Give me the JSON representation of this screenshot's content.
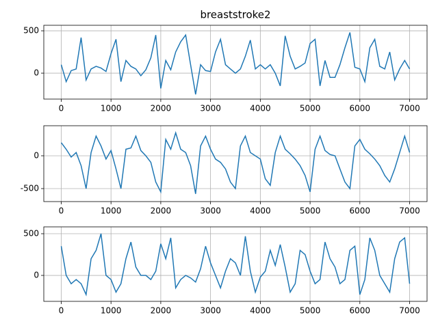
{
  "chart_data": [
    {
      "type": "line",
      "title": "breaststroke2",
      "x": [
        0,
        100,
        200,
        300,
        400,
        500,
        600,
        700,
        800,
        900,
        1000,
        1100,
        1200,
        1300,
        1400,
        1500,
        1600,
        1700,
        1800,
        1900,
        2000,
        2100,
        2200,
        2300,
        2400,
        2500,
        2600,
        2700,
        2800,
        2900,
        3000,
        3100,
        3200,
        3300,
        3400,
        3500,
        3600,
        3700,
        3800,
        3900,
        4000,
        4100,
        4200,
        4300,
        4400,
        4500,
        4600,
        4700,
        4800,
        4900,
        5000,
        5100,
        5200,
        5300,
        5400,
        5500,
        5600,
        5700,
        5800,
        5900,
        6000,
        6100,
        6200,
        6300,
        6400,
        6500,
        6600,
        6700,
        6800,
        6900,
        7000
      ],
      "series": [
        {
          "color": "#1f77b4",
          "values": [
            100,
            -100,
            30,
            50,
            420,
            -80,
            50,
            80,
            60,
            20,
            230,
            400,
            -100,
            150,
            80,
            50,
            -30,
            40,
            180,
            450,
            -180,
            150,
            40,
            250,
            370,
            450,
            100,
            -250,
            100,
            30,
            20,
            250,
            400,
            100,
            50,
            0,
            50,
            200,
            390,
            50,
            100,
            50,
            100,
            0,
            -150,
            440,
            200,
            50,
            80,
            120,
            350,
            400,
            -150,
            150,
            -50,
            -50,
            100,
            300,
            480,
            70,
            50,
            -100,
            300,
            400,
            80,
            50,
            250,
            -80,
            50,
            150,
            50
          ]
        }
      ],
      "xlim": [
        -350,
        7350
      ],
      "ylim": [
        -306,
        565
      ],
      "xticks": [
        0,
        1000,
        2000,
        3000,
        4000,
        5000,
        6000,
        7000
      ],
      "yticks": [
        0,
        500
      ],
      "grid": true
    },
    {
      "type": "line",
      "x": [
        0,
        100,
        200,
        300,
        400,
        500,
        600,
        700,
        800,
        900,
        1000,
        1100,
        1200,
        1300,
        1400,
        1500,
        1600,
        1700,
        1800,
        1900,
        2000,
        2100,
        2200,
        2300,
        2400,
        2500,
        2600,
        2700,
        2800,
        2900,
        3000,
        3100,
        3200,
        3300,
        3400,
        3500,
        3600,
        3700,
        3800,
        3900,
        4000,
        4100,
        4200,
        4300,
        4400,
        4500,
        4600,
        4700,
        4800,
        4900,
        5000,
        5100,
        5200,
        5300,
        5400,
        5500,
        5600,
        5700,
        5800,
        5900,
        6000,
        6100,
        6200,
        6300,
        6400,
        6500,
        6600,
        6700,
        6800,
        6900,
        7000
      ],
      "series": [
        {
          "color": "#1f77b4",
          "values": [
            200,
            100,
            -20,
            50,
            -150,
            -500,
            50,
            300,
            150,
            -50,
            80,
            -200,
            -500,
            100,
            120,
            300,
            80,
            0,
            -100,
            -400,
            -550,
            250,
            100,
            350,
            100,
            50,
            -150,
            -580,
            150,
            300,
            100,
            -50,
            -100,
            -200,
            -400,
            -500,
            150,
            300,
            50,
            0,
            -50,
            -350,
            -450,
            50,
            300,
            100,
            30,
            -50,
            -150,
            -300,
            -550,
            100,
            300,
            80,
            20,
            0,
            -200,
            -400,
            -500,
            150,
            250,
            100,
            30,
            -50,
            -150,
            -300,
            -400,
            -200,
            50,
            300,
            50
          ]
        }
      ],
      "xlim": [
        -350,
        7350
      ],
      "ylim": [
        -698,
        458
      ],
      "xticks": [
        0,
        1000,
        2000,
        3000,
        4000,
        5000,
        6000,
        7000
      ],
      "yticks": [
        -500,
        0
      ],
      "grid": true
    },
    {
      "type": "line",
      "x": [
        0,
        100,
        200,
        300,
        400,
        500,
        600,
        700,
        800,
        900,
        1000,
        1100,
        1200,
        1300,
        1400,
        1500,
        1600,
        1700,
        1800,
        1900,
        2000,
        2100,
        2200,
        2300,
        2400,
        2500,
        2600,
        2700,
        2800,
        2900,
        3000,
        3100,
        3200,
        3300,
        3400,
        3500,
        3600,
        3700,
        3800,
        3900,
        4000,
        4100,
        4200,
        4300,
        4400,
        4500,
        4600,
        4700,
        4800,
        4900,
        5000,
        5100,
        5200,
        5300,
        5400,
        5500,
        5600,
        5700,
        5800,
        5900,
        6000,
        6100,
        6200,
        6300,
        6400,
        6500,
        6600,
        6700,
        6800,
        6900,
        7000
      ],
      "series": [
        {
          "color": "#1f77b4",
          "values": [
            350,
            0,
            -100,
            -50,
            -100,
            -230,
            200,
            300,
            500,
            0,
            -50,
            -200,
            -100,
            200,
            400,
            100,
            0,
            0,
            -50,
            50,
            380,
            200,
            450,
            -150,
            -50,
            0,
            -30,
            -80,
            80,
            350,
            150,
            0,
            -150,
            50,
            200,
            150,
            0,
            470,
            50,
            -200,
            -20,
            50,
            300,
            120,
            370,
            100,
            -200,
            -100,
            300,
            250,
            50,
            -100,
            -50,
            400,
            200,
            100,
            -100,
            -50,
            300,
            350,
            -230,
            -50,
            450,
            300,
            0,
            -100,
            -200,
            200,
            400,
            450,
            -100
          ]
        }
      ],
      "xlim": [
        -350,
        7350
      ],
      "ylim": [
        -311,
        582
      ],
      "xticks": [
        0,
        1000,
        2000,
        3000,
        4000,
        5000,
        6000,
        7000
      ],
      "yticks": [
        0,
        500
      ],
      "grid": true
    }
  ]
}
